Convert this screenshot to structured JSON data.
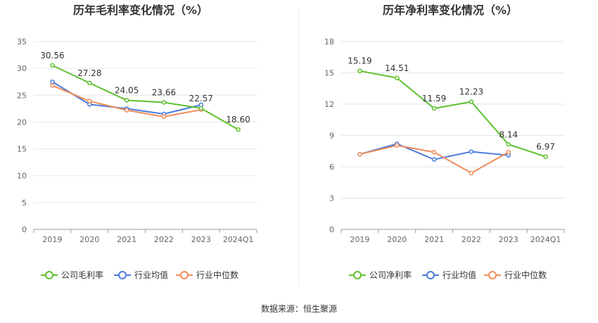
{
  "source_label": "数据来源：恒生聚源",
  "chart_data": [
    {
      "type": "line",
      "title": "历年毛利率变化情况（%）",
      "categories": [
        "2019",
        "2020",
        "2021",
        "2022",
        "2023",
        "2024Q1"
      ],
      "ylim": [
        0,
        35
      ],
      "yticks": [
        0,
        5,
        10,
        15,
        20,
        25,
        30,
        35
      ],
      "grid": true,
      "legend_position": "bottom",
      "series": [
        {
          "name": "公司毛利率",
          "color": "#5dc12e",
          "values": [
            30.56,
            27.28,
            24.05,
            23.66,
            22.57,
            18.6
          ],
          "labels": [
            "30.56",
            "27.28",
            "24.05",
            "23.66",
            "22.57",
            "18.60"
          ]
        },
        {
          "name": "行业均值",
          "color": "#4a7bdc",
          "values": [
            27.5,
            23.3,
            22.5,
            21.5,
            23.2,
            null
          ]
        },
        {
          "name": "行业中位数",
          "color": "#ef8c5c",
          "values": [
            26.8,
            23.9,
            22.2,
            21.0,
            22.3,
            null
          ]
        }
      ]
    },
    {
      "type": "line",
      "title": "历年净利率变化情况（%）",
      "categories": [
        "2019",
        "2020",
        "2021",
        "2022",
        "2023",
        "2024Q1"
      ],
      "ylim": [
        0,
        18
      ],
      "yticks": [
        0,
        3,
        6,
        9,
        12,
        15,
        18
      ],
      "grid": true,
      "legend_position": "bottom",
      "series": [
        {
          "name": "公司净利率",
          "color": "#5dc12e",
          "values": [
            15.19,
            14.51,
            11.59,
            12.23,
            8.14,
            6.97
          ],
          "labels": [
            "15.19",
            "14.51",
            "11.59",
            "12.23",
            "8.14",
            "6.97"
          ]
        },
        {
          "name": "行业均值",
          "color": "#4a7bdc",
          "values": [
            7.2,
            8.2,
            6.7,
            7.45,
            7.1,
            null
          ]
        },
        {
          "name": "行业中位数",
          "color": "#ef8c5c",
          "values": [
            7.2,
            8.05,
            7.4,
            5.4,
            7.4,
            null
          ]
        }
      ]
    }
  ]
}
